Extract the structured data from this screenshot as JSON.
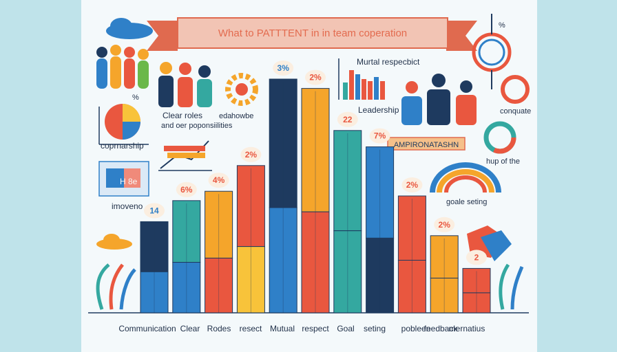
{
  "title": "What to PATTTENT in in team coperation",
  "colors": {
    "background": "#bfe3ea",
    "panel": "#f4f9fb",
    "banner": "#f0a48c",
    "banner_dark": "#e06a4f",
    "title_text": "#e36b4f",
    "navy": "#1e3a5f",
    "blue": "#2f80c8",
    "teal": "#34a8a0",
    "orange": "#f5a52b",
    "red": "#e9573f",
    "yellow": "#f8c33a",
    "green": "#6bb84a"
  },
  "chart_data": {
    "type": "bar",
    "categories": [
      "Communication",
      "Clear",
      "Rodes",
      "resect",
      "Mutual",
      "respect",
      "Goal",
      "seting",
      "pobleen",
      "feedback",
      "mernatius"
    ],
    "values": [
      14,
      6,
      4,
      2,
      3,
      2,
      22,
      7,
      2,
      2,
      2
    ],
    "bar_labels": [
      "14",
      "6%",
      "4%",
      "2%",
      "3%",
      "2%",
      "22",
      "7%",
      "2%",
      "2%",
      "2"
    ],
    "ylim": [
      0,
      100
    ],
    "relative_heights": [
      0.39,
      0.48,
      0.52,
      0.63,
      1.0,
      0.96,
      0.78,
      0.71,
      0.5,
      0.33,
      0.19
    ],
    "segments": [
      [
        "#1e3a5f",
        "#2f80c8"
      ],
      [
        "#34a8a0",
        "#2f80c8"
      ],
      [
        "#f5a52b",
        "#e9573f"
      ],
      [
        "#e9573f",
        "#f8c33a"
      ],
      [
        "#1e3a5f",
        "#2f80c8"
      ],
      [
        "#f5a52b",
        "#e9573f"
      ],
      [
        "#34a8a0",
        "#34a8a0"
      ],
      [
        "#2f80c8",
        "#1e3a5f"
      ],
      [
        "#e9573f",
        "#e9573f"
      ],
      [
        "#f5a52b",
        "#f5a52b"
      ],
      [
        "#e9573f",
        "#e9573f"
      ]
    ]
  },
  "annotations": {
    "mutual_respect": "Murtal respecbict",
    "leadership": "Leadership",
    "clear_roles": "Clear roles",
    "roles_sub": "and oer poponsiilities",
    "howbe": "howbe",
    "howbe_small": "eda",
    "coprnarship": "coprnarship",
    "impoveno": "imoveno",
    "compuate": "conquate",
    "amp_banner": "AMPIRONATASHN",
    "hup": "hup of the",
    "goale": "goale seting",
    "percent_top": "%",
    "percent_top2": "%",
    "grid_text": "H  8e"
  }
}
